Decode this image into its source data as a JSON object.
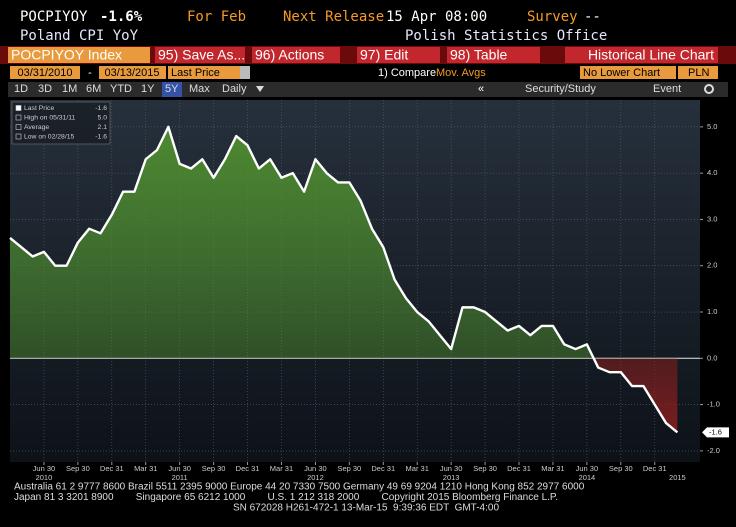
{
  "header": {
    "ticker": "POCPIYOY",
    "last": "-1.6%",
    "period": "For Feb",
    "release_label": "Next Release",
    "release_time": "15 Apr 08:00",
    "survey_label": "Survey",
    "survey_value": "--",
    "name": "Poland CPI YoY",
    "source": "Polish Statistics Office"
  },
  "toolbar": {
    "security": "POCPIYOY Index",
    "buttons": [
      "95) Save As...",
      "96) Actions",
      "97) Edit",
      "98) Table"
    ],
    "view": "Historical Line Chart",
    "start_date": "03/31/2010",
    "date_sep": "-",
    "end_date": "03/13/2015",
    "field": "Last Price",
    "compare": "1) Compare",
    "mov_avgs": "Mov. Avgs",
    "lower_chart": "No Lower Chart",
    "currency": "PLN",
    "ranges": [
      "1D",
      "3D",
      "1M",
      "6M",
      "YTD",
      "1Y",
      "5Y",
      "Max"
    ],
    "selected_range": "5Y",
    "frequency": "Daily",
    "collapse": "«",
    "study": "Security/Study",
    "event": "Event"
  },
  "chart_data": {
    "type": "line",
    "legend": [
      {
        "label": "Last Price",
        "value": "-1.6"
      },
      {
        "label": "High on 05/31/11",
        "value": "5.0"
      },
      {
        "label": "Average",
        "value": "2.1"
      },
      {
        "label": "Low on 02/28/15",
        "value": "-1.6"
      }
    ],
    "last_label": "-1.6",
    "x": [
      "2010-03",
      "2010-04",
      "2010-05",
      "2010-06",
      "2010-07",
      "2010-08",
      "2010-09",
      "2010-10",
      "2010-11",
      "2010-12",
      "2011-01",
      "2011-02",
      "2011-03",
      "2011-04",
      "2011-05",
      "2011-06",
      "2011-07",
      "2011-08",
      "2011-09",
      "2011-10",
      "2011-11",
      "2011-12",
      "2012-01",
      "2012-02",
      "2012-03",
      "2012-04",
      "2012-05",
      "2012-06",
      "2012-07",
      "2012-08",
      "2012-09",
      "2012-10",
      "2012-11",
      "2012-12",
      "2013-01",
      "2013-02",
      "2013-03",
      "2013-04",
      "2013-05",
      "2013-06",
      "2013-07",
      "2013-08",
      "2013-09",
      "2013-10",
      "2013-11",
      "2013-12",
      "2014-01",
      "2014-02",
      "2014-03",
      "2014-04",
      "2014-05",
      "2014-06",
      "2014-07",
      "2014-08",
      "2014-09",
      "2014-10",
      "2014-11",
      "2014-12",
      "2015-01",
      "2015-02"
    ],
    "series": [
      {
        "name": "Last Price",
        "color": "#ffffff",
        "values": [
          2.6,
          2.4,
          2.2,
          2.3,
          2.0,
          2.0,
          2.5,
          2.8,
          2.7,
          3.1,
          3.6,
          3.6,
          4.3,
          4.5,
          5.0,
          4.2,
          4.1,
          4.3,
          3.9,
          4.3,
          4.8,
          4.6,
          4.1,
          4.3,
          3.9,
          4.0,
          3.6,
          4.3,
          4.0,
          3.8,
          3.8,
          3.4,
          2.8,
          2.4,
          1.7,
          1.3,
          1.0,
          0.8,
          0.5,
          0.2,
          1.1,
          1.1,
          1.0,
          0.8,
          0.6,
          0.7,
          0.5,
          0.7,
          0.7,
          0.3,
          0.2,
          0.3,
          -0.2,
          -0.3,
          -0.3,
          -0.6,
          -0.6,
          -1.0,
          -1.4,
          -1.6
        ]
      }
    ],
    "positive_color": "#4f8f2f",
    "negative_color": "#8c1f1f",
    "xlim": [
      "2010-03",
      "2015-04"
    ],
    "xticks": [
      {
        "value": "2010-06",
        "label": "Jun 30"
      },
      {
        "value": "2010-09",
        "label": "Sep 30"
      },
      {
        "value": "2010-12",
        "label": "Dec 31"
      },
      {
        "value": "2011-03",
        "label": "Mar 31"
      },
      {
        "value": "2011-06",
        "label": "Jun 30"
      },
      {
        "value": "2011-09",
        "label": "Sep 30"
      },
      {
        "value": "2011-12",
        "label": "Dec 31"
      },
      {
        "value": "2012-03",
        "label": "Mar 31"
      },
      {
        "value": "2012-06",
        "label": "Jun 30"
      },
      {
        "value": "2012-09",
        "label": "Sep 30"
      },
      {
        "value": "2012-12",
        "label": "Dec 31"
      },
      {
        "value": "2013-03",
        "label": "Mar 31"
      },
      {
        "value": "2013-06",
        "label": "Jun 30"
      },
      {
        "value": "2013-09",
        "label": "Sep 30"
      },
      {
        "value": "2013-12",
        "label": "Dec 31"
      },
      {
        "value": "2014-03",
        "label": "Mar 31"
      },
      {
        "value": "2014-06",
        "label": "Jun 30"
      },
      {
        "value": "2014-09",
        "label": "Sep 30"
      },
      {
        "value": "2014-12",
        "label": "Dec 31"
      }
    ],
    "year_labels": [
      {
        "value": "2010-06",
        "label": "2010"
      },
      {
        "value": "2011-06",
        "label": "2011"
      },
      {
        "value": "2012-06",
        "label": "2012"
      },
      {
        "value": "2013-06",
        "label": "2013"
      },
      {
        "value": "2014-06",
        "label": "2014"
      },
      {
        "value": "2015-02",
        "label": "2015"
      }
    ],
    "ylim": [
      -2.24,
      5.58
    ],
    "yticks": [
      {
        "value": 5,
        "label": "5.0"
      },
      {
        "value": 4,
        "label": "4.0"
      },
      {
        "value": 3,
        "label": "3.0"
      },
      {
        "value": 2,
        "label": "2.0"
      },
      {
        "value": 1,
        "label": "1.0"
      },
      {
        "value": 0,
        "label": "0.0"
      },
      {
        "value": -1,
        "label": "-1.0"
      },
      {
        "value": -2,
        "label": "-2.0"
      }
    ],
    "grid": true
  },
  "footer": {
    "lines": [
      "Australia 61 2 9777 8600 Brazil 5511 2395 9000 Europe 44 20 7330 7500 Germany 49 69 9204 1210 Hong Kong 852 2977 6000",
      "Japan 81 3 3201 8900        Singapore 65 6212 1000        U.S. 1 212 318 2000        Copyright 2015 Bloomberg Finance L.P.",
      "SN 672028 H261-472-1 13-Mar-15  9:39:36 EDT  GMT-4:00"
    ]
  }
}
